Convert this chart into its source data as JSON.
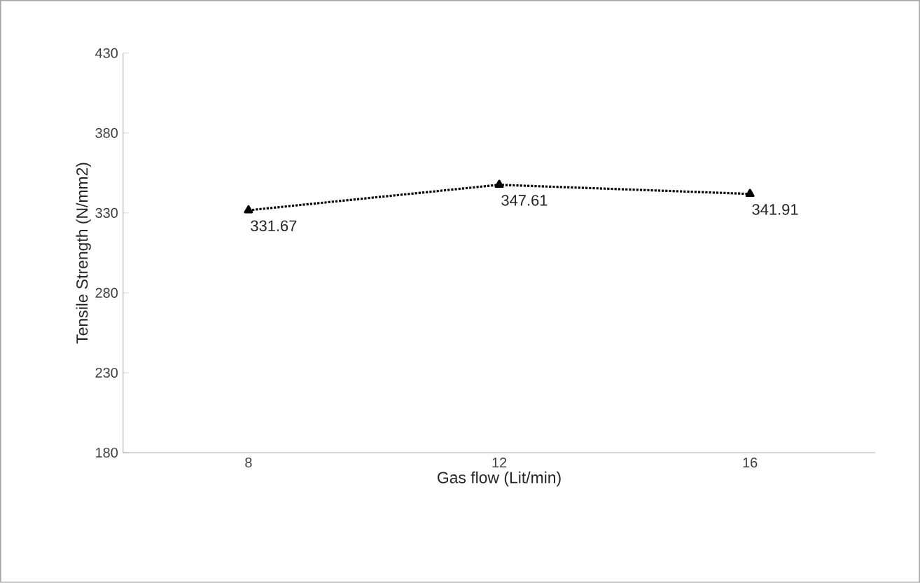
{
  "chart_data": {
    "type": "line",
    "xlabel": "Gas flow (Lit/min)",
    "ylabel": "Tensile Strength (N/mm2)",
    "categories": [
      "8",
      "12",
      "16"
    ],
    "values": [
      331.67,
      347.61,
      341.91
    ],
    "color": "#000000",
    "marker": "triangle",
    "line_style": "dotted",
    "ylim": [
      180,
      430
    ],
    "yticks": [
      180,
      230,
      280,
      330,
      380,
      430
    ],
    "data_labels": true,
    "grid": false
  }
}
